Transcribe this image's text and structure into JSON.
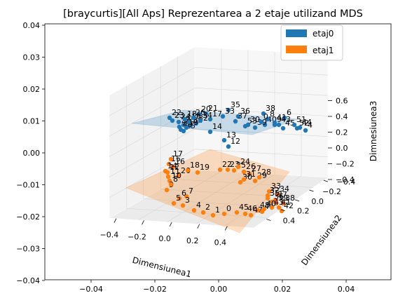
{
  "chart_data": {
    "type": "scatter",
    "title": "[braycurtis][All Aps] Reprezentarea a 2 etaje utilizand MDS",
    "xlabel": "Dimensiunea1",
    "ylabel": "Dimensiunea2",
    "zlabel": "Dimnesiunea3",
    "outer_y_ticks": [
      "0.04",
      "0.03",
      "0.02",
      "0.01",
      "0.00",
      "−0.01",
      "−0.02",
      "−0.03",
      "−0.04"
    ],
    "outer_x_ticks": [
      "−0.04",
      "−0.02",
      "0.00",
      "0.02",
      "0.04"
    ],
    "x_ticks": [
      "−0.4",
      "−0.2",
      "0.0",
      "0.2",
      "0.4"
    ],
    "y_ticks": [
      "−0.4",
      "−0.2",
      "0.0",
      "0.2",
      "0.4"
    ],
    "z_ticks": [
      "−0.4",
      "−0.2",
      "0.0",
      "0.2",
      "0.4",
      "0.6"
    ],
    "grid": true,
    "legend_position": "top-right",
    "series": [
      {
        "name": "etaj0",
        "color": "#1f77b4",
        "labels": [
          "35",
          "36",
          "38",
          "6",
          "21",
          "20",
          "33",
          "37",
          "40",
          "39",
          "41",
          "43",
          "52",
          "24",
          "32",
          "31",
          "25",
          "53",
          "45",
          "4",
          "22",
          "17",
          "34",
          "15",
          "14",
          "13",
          "12",
          "30",
          "51",
          "48",
          "49",
          "44",
          "8",
          "9",
          "18",
          "16",
          "19",
          "23",
          "26",
          "0"
        ]
      },
      {
        "name": "etaj1",
        "color": "#ff7f0e",
        "labels": [
          "17",
          "15",
          "16",
          "14",
          "11",
          "20",
          "10",
          "12",
          "18",
          "19",
          "22",
          "23",
          "25",
          "24",
          "26",
          "27",
          "29",
          "28",
          "30",
          "31",
          "9",
          "8",
          "7",
          "6",
          "5",
          "3",
          "4",
          "2",
          "1",
          "0",
          "45",
          "46",
          "48",
          "47",
          "44",
          "33",
          "34",
          "32",
          "37",
          "35",
          "39",
          "36",
          "38",
          "41",
          "42",
          "43",
          "40"
        ]
      }
    ]
  }
}
